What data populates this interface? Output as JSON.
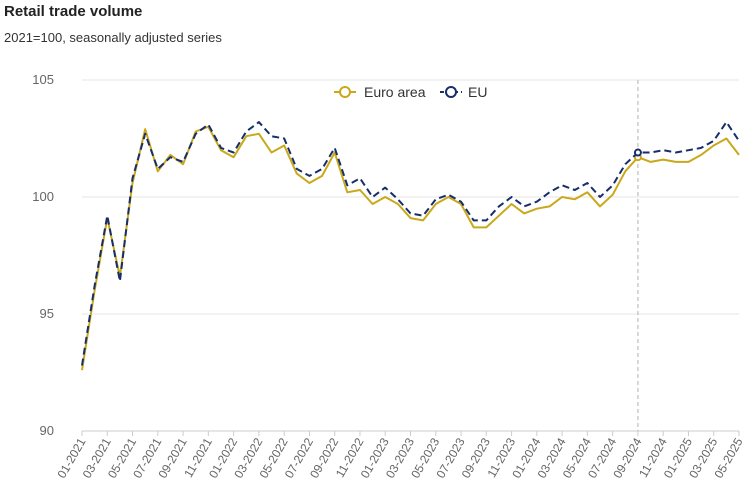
{
  "title": "Retail trade volume",
  "subtitle": "2021=100, seasonally adjusted series",
  "colors": {
    "euro_area": "#c9a81a",
    "eu": "#172e6b",
    "grid": "#e6e6e6",
    "marker_line": "#b3b3b3"
  },
  "chart_data": {
    "type": "line",
    "ylim": [
      90,
      105
    ],
    "yticks": [
      90,
      95,
      100,
      105
    ],
    "x": [
      "01-2021",
      "02-2021",
      "03-2021",
      "04-2021",
      "05-2021",
      "06-2021",
      "07-2021",
      "08-2021",
      "09-2021",
      "10-2021",
      "11-2021",
      "12-2021",
      "01-2022",
      "02-2022",
      "03-2022",
      "04-2022",
      "05-2022",
      "06-2022",
      "07-2022",
      "08-2022",
      "09-2022",
      "10-2022",
      "11-2022",
      "12-2022",
      "01-2023",
      "02-2023",
      "03-2023",
      "04-2023",
      "05-2023",
      "06-2023",
      "07-2023",
      "08-2023",
      "09-2023",
      "10-2023",
      "11-2023",
      "12-2023",
      "01-2024",
      "02-2024",
      "03-2024",
      "04-2024",
      "05-2024",
      "06-2024",
      "07-2024",
      "08-2024",
      "09-2024",
      "10-2024",
      "11-2024",
      "12-2024",
      "01-2025",
      "02-2025",
      "03-2025",
      "04-2025",
      "05-2025"
    ],
    "xtick_labels": [
      "01-2021",
      "03-2021",
      "05-2021",
      "07-2021",
      "09-2021",
      "11-2021",
      "01-2022",
      "03-2022",
      "05-2022",
      "07-2022",
      "09-2022",
      "11-2022",
      "01-2023",
      "03-2023",
      "05-2023",
      "07-2023",
      "09-2023",
      "11-2023",
      "01-2024",
      "03-2024",
      "05-2024",
      "07-2024",
      "09-2024",
      "11-2024",
      "01-2025",
      "03-2025",
      "05-2025"
    ],
    "highlight_x": "09-2024",
    "legend": [
      "Euro area",
      "EU"
    ],
    "legend_position": "top-center",
    "series": [
      {
        "name": "Euro area",
        "style": "solid",
        "values": [
          92.6,
          96.0,
          99.1,
          96.6,
          100.6,
          102.9,
          101.1,
          101.8,
          101.4,
          102.8,
          103.0,
          102.0,
          101.7,
          102.6,
          102.7,
          101.9,
          102.2,
          101.0,
          100.6,
          100.9,
          101.9,
          100.2,
          100.3,
          99.7,
          100.0,
          99.7,
          99.1,
          99.0,
          99.7,
          100.0,
          99.7,
          98.7,
          98.7,
          99.2,
          99.7,
          99.3,
          99.5,
          99.6,
          100.0,
          99.9,
          100.2,
          99.6,
          100.1,
          101.1,
          101.7,
          101.5,
          101.6,
          101.5,
          101.5,
          101.8,
          102.2,
          102.5,
          101.8
        ]
      },
      {
        "name": "EU",
        "style": "dashed",
        "values": [
          92.8,
          96.2,
          99.2,
          96.4,
          100.8,
          102.7,
          101.2,
          101.7,
          101.5,
          102.7,
          103.1,
          102.1,
          101.9,
          102.8,
          103.2,
          102.6,
          102.5,
          101.2,
          100.9,
          101.2,
          102.1,
          100.5,
          100.8,
          100.0,
          100.4,
          99.9,
          99.3,
          99.2,
          99.9,
          100.1,
          99.8,
          99.0,
          99.0,
          99.6,
          100.0,
          99.6,
          99.8,
          100.2,
          100.5,
          100.3,
          100.6,
          100.0,
          100.5,
          101.4,
          101.9,
          101.9,
          102.0,
          101.9,
          102.0,
          102.1,
          102.4,
          103.2,
          102.4
        ]
      }
    ]
  }
}
